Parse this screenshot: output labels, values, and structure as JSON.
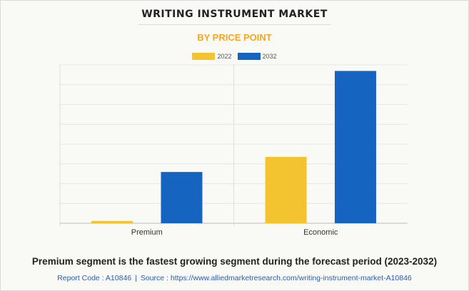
{
  "chart_data": {
    "type": "bar",
    "title": "WRITING INSTRUMENT MARKET",
    "subtitle": "BY PRICE POINT",
    "categories": [
      "Premium",
      "Economic"
    ],
    "series": [
      {
        "name": "2022",
        "color": "#f4c430",
        "values": [
          0.3,
          8.8
        ]
      },
      {
        "name": "2032",
        "color": "#1565c0",
        "values": [
          6.8,
          20.2
        ]
      }
    ],
    "ylim": [
      0,
      21
    ],
    "grid": true,
    "legend_position": "top-center"
  },
  "caption": "Premium segment is the fastest growing segment during the forecast period (2023-2032)",
  "source": {
    "report_code": "Report Code : A10846",
    "separator": "|",
    "source_text": "Source : https://www.alliedmarketresearch.com/writing-instrument-market-A10846"
  }
}
